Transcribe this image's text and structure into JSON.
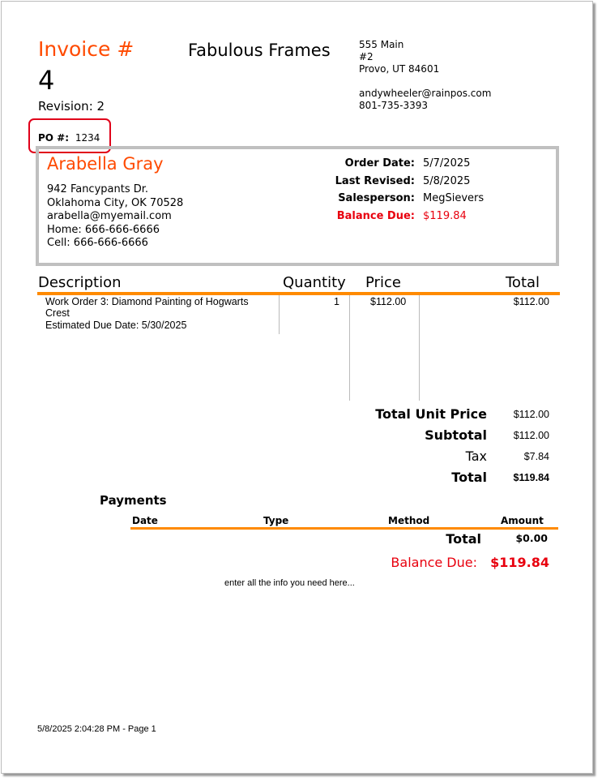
{
  "header": {
    "invoice_label": "Invoice #",
    "invoice_number": "4",
    "revision": "Revision: 2",
    "po_label": "PO #:",
    "po_value": "1234",
    "company": "Fabulous Frames",
    "address": [
      "555 Main",
      "#2",
      "Provo, UT 84601"
    ],
    "email": "andywheeler@rainpos.com",
    "phone": "801-735-3393"
  },
  "customer": {
    "name": "Arabella Gray",
    "lines": [
      "942 Fancypants Dr.",
      "Oklahoma City, OK 70528",
      "arabella@myemail.com",
      "Home: 666-666-6666",
      "Cell: 666-666-6666"
    ]
  },
  "order": {
    "order_date_label": "Order Date:",
    "order_date": "5/7/2025",
    "last_revised_label": "Last Revised:",
    "last_revised": "5/8/2025",
    "salesperson_label": "Salesperson:",
    "salesperson": "MegSievers",
    "balance_label": "Balance Due:",
    "balance": "$119.84"
  },
  "items": {
    "headers": [
      "Description",
      "Quantity",
      "Price",
      "Total"
    ],
    "rows": [
      {
        "description": "Work Order 3: Diamond Painting of Hogwarts",
        "description2": "Crest",
        "due": "Estimated Due Date: 5/30/2025",
        "quantity": "1",
        "price": "$112.00",
        "total": "$112.00"
      }
    ]
  },
  "totals": {
    "unit_price_label": "Total Unit Price",
    "unit_price": "$112.00",
    "subtotal_label": "Subtotal",
    "subtotal": "$112.00",
    "tax_label": "Tax",
    "tax": "$7.84",
    "total_label": "Total",
    "total": "$119.84"
  },
  "payments": {
    "title": "Payments",
    "headers": [
      "Date",
      "Type",
      "Method",
      "Amount"
    ],
    "total_label": "Total",
    "total": "$0.00",
    "balance_label": "Balance Due:",
    "balance": "$119.84"
  },
  "note": "enter all the info you need here...",
  "footer": "5/8/2025 2:04:28 PM - Page 1",
  "colors": {
    "accent": "#ff8a00",
    "title": "#ff4a00",
    "due": "#e8000e",
    "highlight": "#e0001a"
  }
}
